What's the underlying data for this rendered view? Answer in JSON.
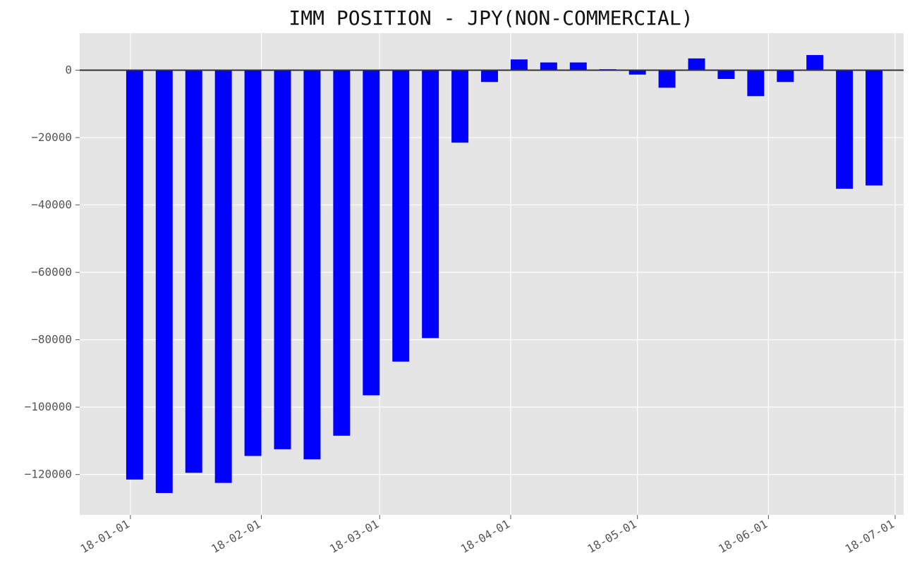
{
  "chart_data": {
    "type": "bar",
    "title": "IMM POSITION - JPY(NON-COMMERCIAL)",
    "xlabel": "",
    "ylabel": "",
    "x": [
      "2018-01-02",
      "2018-01-09",
      "2018-01-16",
      "2018-01-23",
      "2018-01-30",
      "2018-02-06",
      "2018-02-13",
      "2018-02-20",
      "2018-02-27",
      "2018-03-06",
      "2018-03-13",
      "2018-03-20",
      "2018-03-27",
      "2018-04-03",
      "2018-04-10",
      "2018-04-17",
      "2018-04-24",
      "2018-05-01",
      "2018-05-08",
      "2018-05-15",
      "2018-05-22",
      "2018-05-29",
      "2018-06-05",
      "2018-06-12",
      "2018-06-19",
      "2018-06-26"
    ],
    "values": [
      -121500,
      -125500,
      -119500,
      -122500,
      -114500,
      -112500,
      -115500,
      -108500,
      -96500,
      -86500,
      -79500,
      -21500,
      -3500,
      3200,
      2300,
      2300,
      300,
      -1300,
      -5200,
      3500,
      -2600,
      -7700,
      -3500,
      4500,
      -35200,
      -34200
    ],
    "ylim": [
      -132000,
      11000
    ],
    "xlim": [
      "2017-12-20",
      "2018-07-03"
    ],
    "y_ticks": [
      0,
      -20000,
      -40000,
      -60000,
      -80000,
      -100000,
      -120000
    ],
    "y_tick_labels": [
      "0",
      "−20000",
      "−40000",
      "−60000",
      "−80000",
      "−100000",
      "−120000"
    ],
    "x_ticks": [
      "2018-01-01",
      "2018-02-01",
      "2018-03-01",
      "2018-04-01",
      "2018-05-01",
      "2018-06-01",
      "2018-07-01"
    ],
    "x_tick_labels": [
      "18-01-01",
      "18-02-01",
      "18-03-01",
      "18-04-01",
      "18-05-01",
      "18-06-01",
      "18-07-01"
    ],
    "grid": true,
    "zero_line": true,
    "colors": {
      "bar": "#0000ff",
      "plot_background": "#e5e5e5",
      "grid": "#ffffff",
      "zero_line": "#333333",
      "text": "#555555"
    }
  }
}
